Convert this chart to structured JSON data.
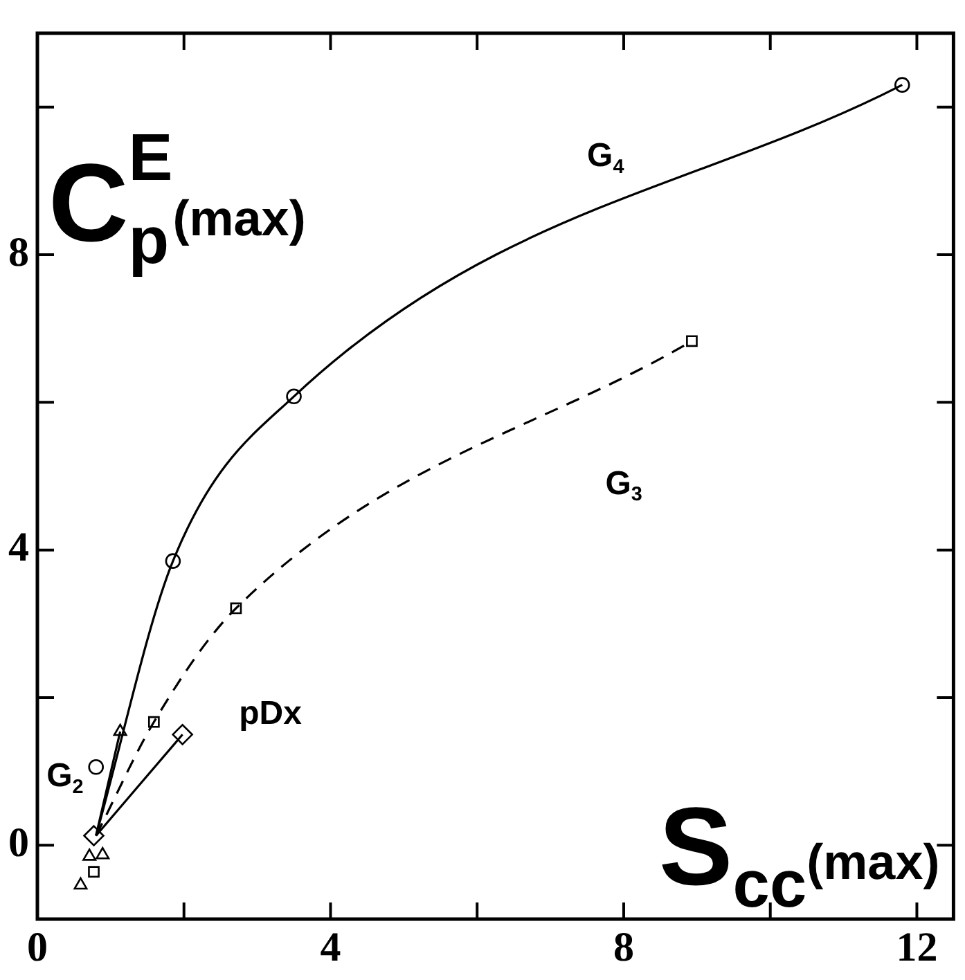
{
  "chart_data": {
    "type": "scatter",
    "xlabel": "S$_{cc}$(max)",
    "ylabel": "C$_{p}$$^{E}$(max)",
    "xlim": [
      0,
      12.5
    ],
    "ylim": [
      -1,
      11
    ],
    "xticks": [
      0,
      {
        "value": 2,
        "label": null
      },
      4,
      {
        "value": 6,
        "label": null
      },
      8,
      {
        "value": 10,
        "label": null
      },
      12
    ],
    "yticks": [
      0,
      {
        "value": 2,
        "label": null
      },
      4,
      {
        "value": 6,
        "label": null
      },
      8,
      {
        "value": 10,
        "label": null
      }
    ],
    "grid": false,
    "legend": false,
    "series": [
      {
        "type": "line",
        "line_style": "solid",
        "marker": "none",
        "color": "#000000",
        "x": [
          0.8,
          1.85,
          3.5,
          11.8
        ],
        "values": [
          0.13,
          3.85,
          6.08,
          10.3
        ]
      },
      {
        "type": "line",
        "line_style": "dashed",
        "marker": "none",
        "color": "#000000",
        "x": [
          0.8,
          1.59,
          2.71,
          8.93
        ],
        "values": [
          0.13,
          1.67,
          3.21,
          6.83
        ]
      },
      {
        "type": "line",
        "line_style": "solid",
        "marker": "none",
        "color": "#000000",
        "x": [
          0.8,
          1.13
        ],
        "values": [
          0.13,
          1.54
        ]
      },
      {
        "type": "line",
        "line_style": "solid",
        "marker": "none",
        "color": "#000000",
        "x": [
          0.8,
          1.98
        ],
        "values": [
          0.13,
          1.5
        ]
      },
      {
        "marker": "circle",
        "color": "#000000",
        "x": [
          0.8,
          1.85,
          3.5,
          11.8
        ],
        "values": [
          1.06,
          3.85,
          6.08,
          10.3
        ]
      },
      {
        "marker": "square",
        "color": "#000000",
        "x": [
          0.77,
          1.59,
          2.71,
          8.93
        ],
        "values": [
          -0.36,
          1.67,
          3.21,
          6.83
        ]
      },
      {
        "marker": "triangle",
        "color": "#000000",
        "x": [
          0.59,
          0.71,
          0.89,
          1.13
        ],
        "values": [
          -0.54,
          -0.15,
          -0.13,
          1.54
        ]
      },
      {
        "marker": "diamond",
        "color": "#000000",
        "x": [
          0.77,
          1.98
        ],
        "values": [
          0.13,
          1.5
        ]
      }
    ],
    "annotations": [
      "G$_{4}$",
      "G$_{3}$",
      "G$_{2}$",
      "pDx"
    ]
  }
}
